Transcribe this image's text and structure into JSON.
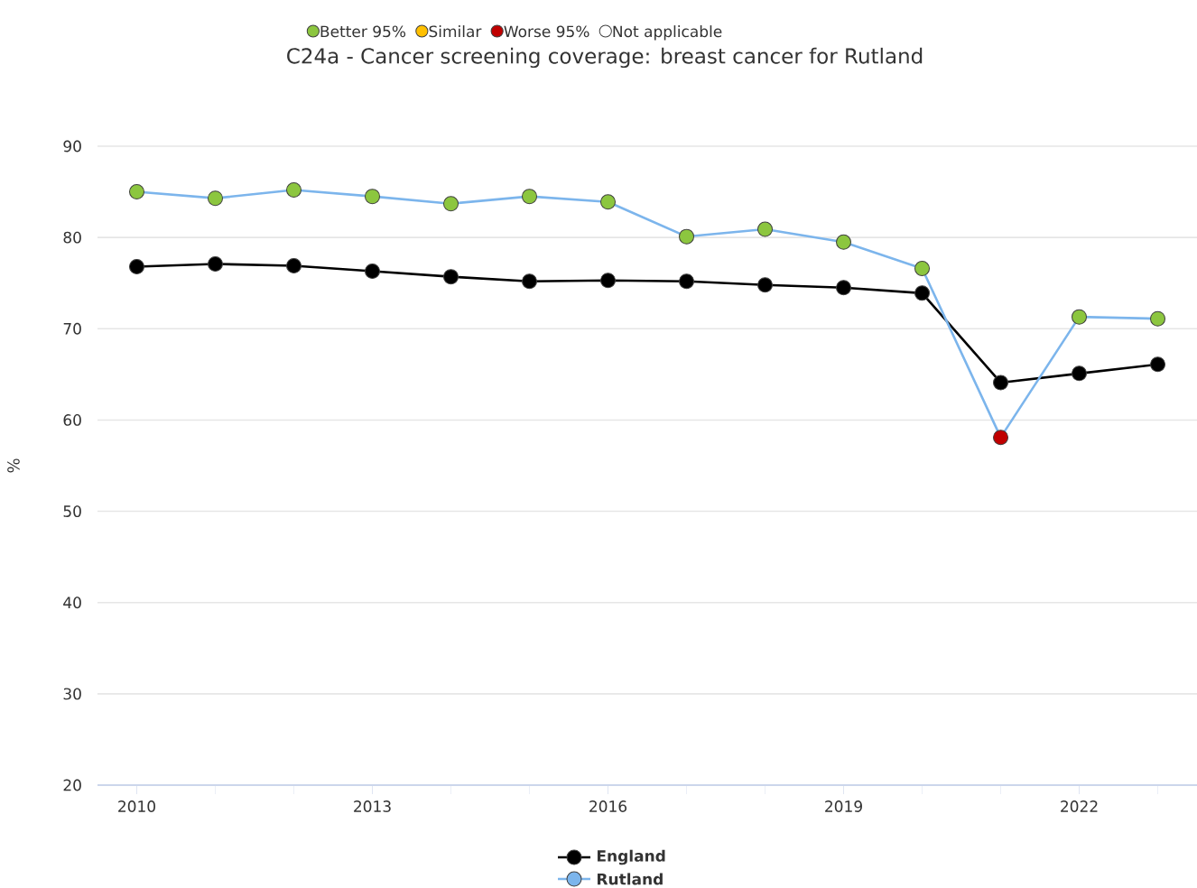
{
  "chart_data": {
    "type": "line",
    "title": "C24a - Cancer screening coverage: breast cancer for Rutland",
    "ylabel": "%",
    "x": [
      2010,
      2011,
      2012,
      2013,
      2014,
      2015,
      2016,
      2017,
      2018,
      2019,
      2020,
      2021,
      2022,
      2023
    ],
    "series": [
      {
        "name": "England",
        "color": "#000000",
        "values": [
          76.8,
          77.1,
          76.9,
          76.3,
          75.7,
          75.2,
          75.3,
          75.2,
          74.8,
          74.5,
          73.9,
          64.1,
          65.1,
          66.1
        ]
      },
      {
        "name": "Rutland",
        "color": "#7cb5ec",
        "values": [
          85.0,
          84.3,
          85.2,
          84.5,
          83.7,
          84.5,
          83.9,
          80.1,
          80.9,
          79.5,
          76.6,
          58.1,
          71.3,
          71.1
        ],
        "colors": [
          "#8cc63f",
          "#8cc63f",
          "#8cc63f",
          "#8cc63f",
          "#8cc63f",
          "#8cc63f",
          "#8cc63f",
          "#8cc63f",
          "#8cc63f",
          "#8cc63f",
          "#8cc63f",
          "#c00000",
          "#8cc63f",
          "#8cc63f"
        ]
      }
    ],
    "annotations": [
      "Better 95%",
      "Similar",
      "Worse 95%",
      "Not applicable"
    ],
    "xlim": [
      2009.5,
      2023.5
    ],
    "xticks": [
      2010,
      2013,
      2016,
      2019,
      2022
    ],
    "ylim": [
      20,
      90
    ],
    "yticks": [
      20,
      30,
      40,
      50,
      60,
      70,
      80,
      90
    ],
    "grid": "y",
    "legend": "bottom",
    "marker": "circle",
    "line_style": "solid"
  }
}
